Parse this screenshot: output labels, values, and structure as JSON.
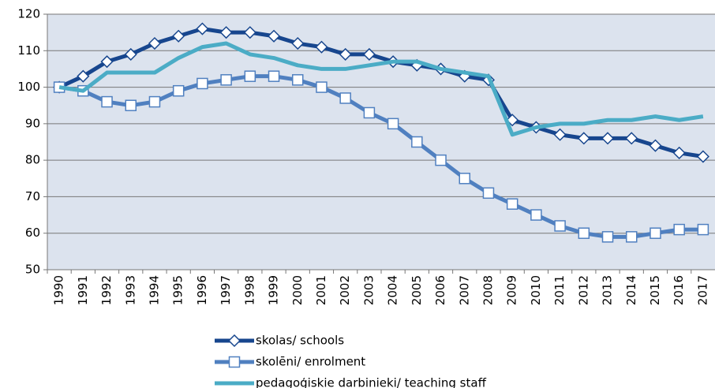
{
  "chart_data": {
    "type": "line",
    "categories": [
      "1990",
      "1991",
      "1992",
      "1993",
      "1994",
      "1995",
      "1996",
      "1997",
      "1998",
      "1999",
      "2000",
      "2001",
      "2002",
      "2003",
      "2004",
      "2005",
      "2006",
      "2007",
      "2008",
      "2009",
      "2010",
      "2011",
      "2012",
      "2013",
      "2014",
      "2015",
      "2016",
      "2017"
    ],
    "series": [
      {
        "name": "skolas/ schools",
        "color": "#17468e",
        "marker": "diamond",
        "values": [
          100,
          103,
          107,
          109,
          112,
          114,
          116,
          115,
          115,
          114,
          112,
          111,
          109,
          109,
          107,
          106,
          105,
          103,
          102,
          91,
          89,
          87,
          86,
          86,
          86,
          84,
          82,
          81
        ]
      },
      {
        "name": "skolēni/ enrolment",
        "color": "#5080c0",
        "marker": "square",
        "values": [
          100,
          99,
          96,
          95,
          96,
          99,
          101,
          102,
          103,
          103,
          102,
          100,
          97,
          93,
          90,
          85,
          80,
          75,
          71,
          68,
          65,
          62,
          60,
          59,
          59,
          60,
          61,
          61
        ]
      },
      {
        "name": "pedagoģiskie darbinieki/ teaching staff",
        "color": "#4bacc6",
        "values": [
          100,
          99,
          104,
          104,
          104,
          108,
          111,
          112,
          109,
          108,
          106,
          105,
          105,
          106,
          107,
          107,
          105,
          104,
          103,
          87,
          89,
          90,
          90,
          91,
          91,
          92,
          91,
          92
        ]
      }
    ],
    "ylim": [
      50,
      120
    ],
    "yticks": [
      50,
      60,
      70,
      80,
      90,
      100,
      110,
      120
    ],
    "grid": true
  }
}
